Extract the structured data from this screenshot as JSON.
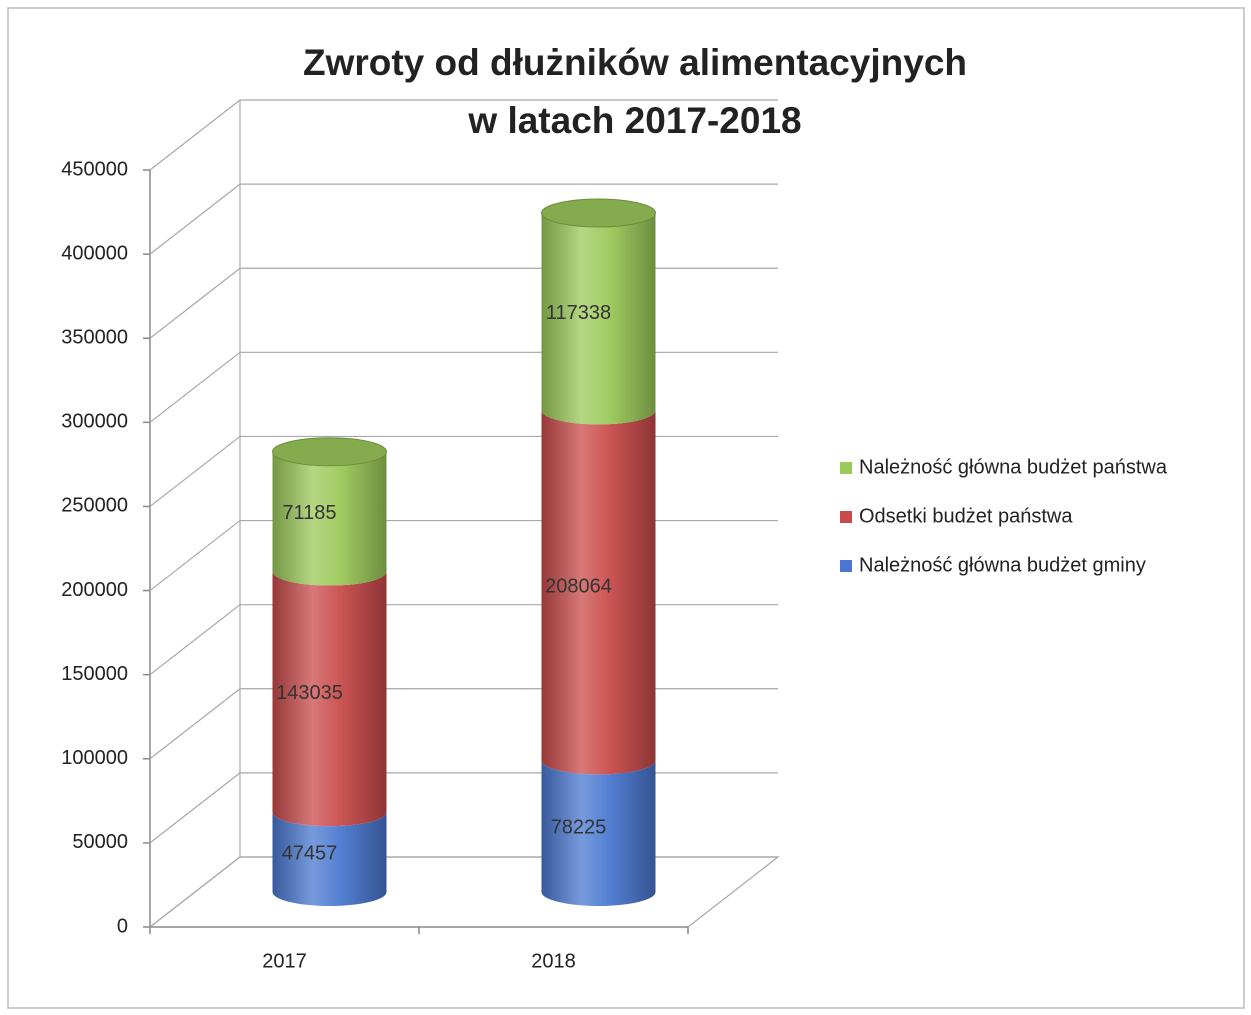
{
  "chart_data": {
    "type": "bar",
    "title": [
      "Zwroty od dłużników alimentacyjnych",
      "w latach 2017-2018"
    ],
    "categories": [
      "2017",
      "2018"
    ],
    "stacked": true,
    "series": [
      {
        "name": "Należność główna budżet gminy",
        "color": "#4a78d0",
        "values": [
          47457,
          78225
        ]
      },
      {
        "name": "Odsetki budżet państwa",
        "color": "#c94b4b",
        "values": [
          143035,
          208064
        ]
      },
      {
        "name": "Należność główna budżet państwa",
        "color": "#9bc95a",
        "values": [
          71185,
          117338
        ]
      }
    ],
    "ylim": [
      0,
      450000
    ],
    "yticks": [
      0,
      50000,
      100000,
      150000,
      200000,
      250000,
      300000,
      350000,
      400000,
      450000
    ],
    "grid": true,
    "legend": "right"
  }
}
